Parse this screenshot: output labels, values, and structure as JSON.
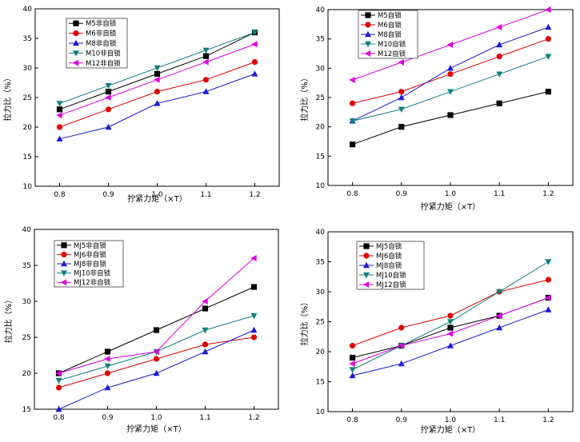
{
  "chart_data": [
    {
      "type": "line",
      "title": "",
      "xlabel": "拧紧力矩（×T）",
      "ylabel": "拉力比（%）",
      "categories": [
        "0.8",
        "0.9",
        "1.0",
        "1.1",
        "1.2"
      ],
      "ylim": [
        10,
        40
      ],
      "yticks": [
        "10",
        "15",
        "20",
        "25",
        "30",
        "35",
        "40"
      ],
      "grid": false,
      "legend_position": "top-left",
      "series": [
        {
          "name": "M5非自锁",
          "values": [
            23,
            26,
            29,
            32,
            36
          ],
          "color": "#000000",
          "marker": "square"
        },
        {
          "name": "M6非自锁",
          "values": [
            20,
            23,
            26,
            28,
            31
          ],
          "color": "#e00000",
          "marker": "circle"
        },
        {
          "name": "M8非自锁",
          "values": [
            18,
            20,
            24,
            26,
            29
          ],
          "color": "#1a1ad6",
          "marker": "triangle-up"
        },
        {
          "name": "M10非自锁",
          "values": [
            24,
            27,
            30,
            33,
            36
          ],
          "color": "#128080",
          "marker": "triangle-down"
        },
        {
          "name": "M12非自锁",
          "values": [
            22,
            25,
            28,
            31,
            34
          ],
          "color": "#e000e0",
          "marker": "triangle-left"
        }
      ]
    },
    {
      "type": "line",
      "title": "",
      "xlabel": "拧紧力矩（×T）",
      "ylabel": "拉力比（%）",
      "categories": [
        "0.8",
        "0.9",
        "1.0",
        "1.1",
        "1.2"
      ],
      "ylim": [
        10,
        40
      ],
      "yticks": [
        "10",
        "15",
        "20",
        "25",
        "30",
        "35",
        "40"
      ],
      "grid": false,
      "legend_position": "top-left",
      "series": [
        {
          "name": "M5自锁",
          "values": [
            17,
            20,
            22,
            24,
            26
          ],
          "color": "#000000",
          "marker": "square"
        },
        {
          "name": "M6自锁",
          "values": [
            24,
            26,
            29,
            32,
            35
          ],
          "color": "#e00000",
          "marker": "circle"
        },
        {
          "name": "M8自锁",
          "values": [
            21,
            25,
            30,
            34,
            37
          ],
          "color": "#1a1ad6",
          "marker": "triangle-up"
        },
        {
          "name": "M10自锁",
          "values": [
            21,
            23,
            26,
            29,
            32
          ],
          "color": "#128080",
          "marker": "triangle-down"
        },
        {
          "name": "M12自锁",
          "values": [
            28,
            31,
            34,
            37,
            40
          ],
          "color": "#e000e0",
          "marker": "triangle-left"
        }
      ]
    },
    {
      "type": "line",
      "title": "",
      "xlabel": "拧紧力矩（×T）",
      "ylabel": "拉力比（%）",
      "categories": [
        "0.8",
        "0.9",
        "1.0",
        "1.1",
        "1.2"
      ],
      "ylim": [
        15,
        40
      ],
      "yticks": [
        "15",
        "20",
        "25",
        "30",
        "35",
        "40"
      ],
      "grid": false,
      "legend_position": "top-left",
      "series": [
        {
          "name": "MJ5非自锁",
          "values": [
            20,
            23,
            26,
            29,
            32
          ],
          "color": "#000000",
          "marker": "square"
        },
        {
          "name": "MJ6非自锁",
          "values": [
            18,
            20,
            22,
            24,
            25
          ],
          "color": "#e00000",
          "marker": "circle"
        },
        {
          "name": "MJ8非自锁",
          "values": [
            15,
            18,
            20,
            23,
            26
          ],
          "color": "#1a1ad6",
          "marker": "triangle-up"
        },
        {
          "name": "MJ10非自锁",
          "values": [
            19,
            21,
            23,
            26,
            28
          ],
          "color": "#128080",
          "marker": "triangle-down"
        },
        {
          "name": "MJ12非自锁",
          "values": [
            20,
            22,
            23,
            30,
            36
          ],
          "color": "#e000e0",
          "marker": "triangle-left"
        }
      ]
    },
    {
      "type": "line",
      "title": "",
      "xlabel": "拧紧力矩（×T）",
      "ylabel": "拉力比（%）",
      "categories": [
        "0.8",
        "0.9",
        "1.0",
        "1.1",
        "1.2"
      ],
      "ylim": [
        10,
        40
      ],
      "yticks": [
        "10",
        "15",
        "20",
        "25",
        "30",
        "35",
        "40"
      ],
      "grid": false,
      "legend_position": "top-left",
      "series": [
        {
          "name": "MJ5自锁",
          "values": [
            19,
            21,
            24,
            26,
            29
          ],
          "color": "#000000",
          "marker": "square"
        },
        {
          "name": "MJ6自锁",
          "values": [
            21,
            24,
            26,
            30,
            32
          ],
          "color": "#e00000",
          "marker": "circle"
        },
        {
          "name": "MJ8自锁",
          "values": [
            16,
            18,
            21,
            24,
            27
          ],
          "color": "#1a1ad6",
          "marker": "triangle-up"
        },
        {
          "name": "MJ10自锁",
          "values": [
            17,
            21,
            25,
            30,
            35
          ],
          "color": "#128080",
          "marker": "triangle-down"
        },
        {
          "name": "MJ12自锁",
          "values": [
            18,
            21,
            23,
            26,
            29
          ],
          "color": "#e000e0",
          "marker": "triangle-left"
        }
      ]
    }
  ]
}
